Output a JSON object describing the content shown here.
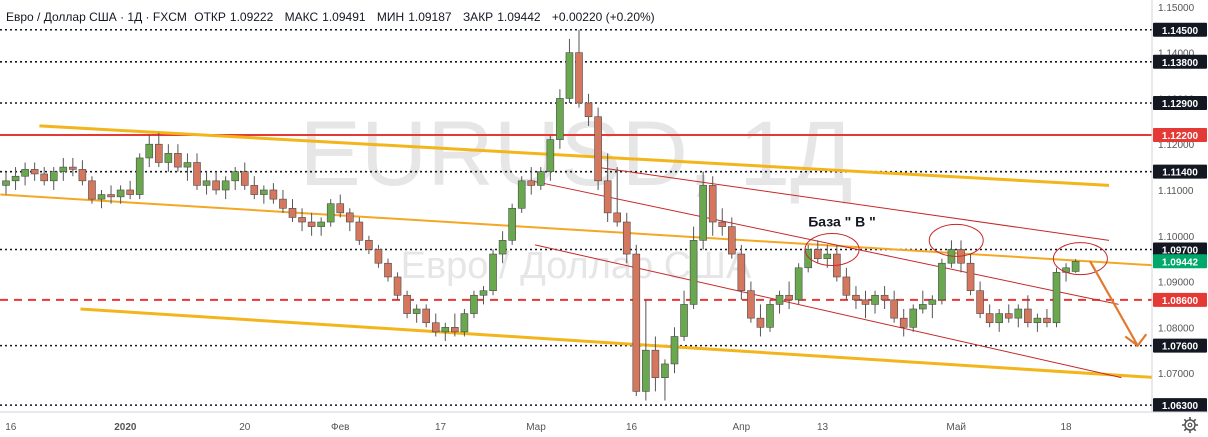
{
  "header": {
    "symbol": "Евро / Доллар США · 1Д · FXCM",
    "open_label": "ОТКР",
    "open": "1.09222",
    "high_label": "МАКС",
    "high": "1.09491",
    "low_label": "МИН",
    "low": "1.09187",
    "close_label": "ЗАКР",
    "close": "1.09442",
    "change": "+0.00220 (+0.20%)"
  },
  "watermark": {
    "ticker": "EURUSD, 1Д",
    "name": "Евро / Доллар США"
  },
  "annotation": "База \" В \"",
  "colors": {
    "up": "#6aa84f",
    "down": "#d5775e",
    "support": "#f2b51c",
    "mid_line": "#f5a623",
    "red_level": "#e53935",
    "channel": "#c62828",
    "forecast": "#e07a2e",
    "price_tag": "#00a86b"
  },
  "chart_data": {
    "type": "candlestick",
    "title": "Евро / Доллар США · 1Д · FXCM",
    "ylim": [
      1.0615,
      1.1515
    ],
    "y_ticks": [
      "1.15000",
      "1.14000",
      "1.13000",
      "1.12000",
      "1.11000",
      "1.10000",
      "1.09000",
      "1.08000",
      "1.07000"
    ],
    "x_ticks": [
      "16",
      "2020",
      "20",
      "Фев",
      "17",
      "Мар",
      "16",
      "Апр",
      "13",
      "Май",
      "18"
    ],
    "levels": [
      {
        "label": "1.14500",
        "value": 1.145,
        "style": "dotted",
        "color": "#131722"
      },
      {
        "label": "1.13800",
        "value": 1.138,
        "style": "dotted",
        "color": "#131722"
      },
      {
        "label": "1.12900",
        "value": 1.129,
        "style": "dotted",
        "color": "#131722"
      },
      {
        "label": "1.12200",
        "value": 1.122,
        "style": "solid",
        "color": "#e53935"
      },
      {
        "label": "1.11400",
        "value": 1.114,
        "style": "dotted",
        "color": "#131722"
      },
      {
        "label": "1.09700",
        "value": 1.097,
        "style": "dotted",
        "color": "#131722"
      },
      {
        "label": "1.08600",
        "value": 1.086,
        "style": "dashed",
        "color": "#e53935"
      },
      {
        "label": "1.07600",
        "value": 1.076,
        "style": "dotted",
        "color": "#131722"
      },
      {
        "label": "1.06300",
        "value": 1.063,
        "style": "dotted",
        "color": "#131722"
      }
    ],
    "current_price": {
      "label": "1.09442",
      "value": 1.09442
    },
    "candles": [
      [
        1.111,
        1.114,
        1.109,
        1.112
      ],
      [
        1.112,
        1.115,
        1.11,
        1.113
      ],
      [
        1.113,
        1.116,
        1.111,
        1.1145
      ],
      [
        1.1145,
        1.116,
        1.112,
        1.1135
      ],
      [
        1.1135,
        1.115,
        1.111,
        1.112
      ],
      [
        1.112,
        1.115,
        1.11,
        1.114
      ],
      [
        1.114,
        1.117,
        1.112,
        1.115
      ],
      [
        1.115,
        1.117,
        1.113,
        1.1145
      ],
      [
        1.1145,
        1.1165,
        1.111,
        1.112
      ],
      [
        1.112,
        1.113,
        1.107,
        1.108
      ],
      [
        1.108,
        1.11,
        1.106,
        1.109
      ],
      [
        1.109,
        1.111,
        1.107,
        1.1085
      ],
      [
        1.1085,
        1.111,
        1.107,
        1.11
      ],
      [
        1.11,
        1.112,
        1.108,
        1.109
      ],
      [
        1.109,
        1.118,
        1.108,
        1.117
      ],
      [
        1.117,
        1.122,
        1.115,
        1.12
      ],
      [
        1.12,
        1.1225,
        1.115,
        1.116
      ],
      [
        1.116,
        1.12,
        1.114,
        1.118
      ],
      [
        1.118,
        1.12,
        1.114,
        1.115
      ],
      [
        1.115,
        1.118,
        1.112,
        1.116
      ],
      [
        1.116,
        1.118,
        1.11,
        1.111
      ],
      [
        1.111,
        1.114,
        1.109,
        1.112
      ],
      [
        1.112,
        1.114,
        1.109,
        1.11
      ],
      [
        1.11,
        1.113,
        1.108,
        1.112
      ],
      [
        1.112,
        1.115,
        1.11,
        1.114
      ],
      [
        1.114,
        1.116,
        1.11,
        1.111
      ],
      [
        1.111,
        1.113,
        1.108,
        1.109
      ],
      [
        1.109,
        1.111,
        1.107,
        1.11
      ],
      [
        1.11,
        1.1115,
        1.107,
        1.108
      ],
      [
        1.108,
        1.11,
        1.105,
        1.106
      ],
      [
        1.106,
        1.108,
        1.103,
        1.104
      ],
      [
        1.104,
        1.106,
        1.101,
        1.103
      ],
      [
        1.103,
        1.105,
        1.1,
        1.102
      ],
      [
        1.102,
        1.104,
        1.1,
        1.103
      ],
      [
        1.103,
        1.108,
        1.102,
        1.107
      ],
      [
        1.107,
        1.109,
        1.104,
        1.105
      ],
      [
        1.105,
        1.106,
        1.101,
        1.103
      ],
      [
        1.103,
        1.104,
        1.098,
        1.099
      ],
      [
        1.099,
        1.1,
        1.096,
        1.097
      ],
      [
        1.097,
        1.098,
        1.093,
        1.094
      ],
      [
        1.094,
        1.095,
        1.09,
        1.091
      ],
      [
        1.091,
        1.092,
        1.086,
        1.087
      ],
      [
        1.087,
        1.088,
        1.082,
        1.083
      ],
      [
        1.083,
        1.085,
        1.081,
        1.084
      ],
      [
        1.084,
        1.085,
        1.08,
        1.081
      ],
      [
        1.081,
        1.083,
        1.078,
        1.079
      ],
      [
        1.079,
        1.081,
        1.077,
        1.08
      ],
      [
        1.08,
        1.083,
        1.078,
        1.079
      ],
      [
        1.079,
        1.084,
        1.078,
        1.083
      ],
      [
        1.083,
        1.088,
        1.082,
        1.087
      ],
      [
        1.087,
        1.089,
        1.085,
        1.088
      ],
      [
        1.088,
        1.097,
        1.087,
        1.096
      ],
      [
        1.096,
        1.101,
        1.094,
        1.099
      ],
      [
        1.099,
        1.107,
        1.098,
        1.106
      ],
      [
        1.106,
        1.113,
        1.105,
        1.112
      ],
      [
        1.112,
        1.115,
        1.109,
        1.111
      ],
      [
        1.111,
        1.115,
        1.11,
        1.114
      ],
      [
        1.114,
        1.122,
        1.112,
        1.121
      ],
      [
        1.121,
        1.132,
        1.119,
        1.13
      ],
      [
        1.13,
        1.143,
        1.129,
        1.14
      ],
      [
        1.14,
        1.145,
        1.128,
        1.129
      ],
      [
        1.129,
        1.131,
        1.124,
        1.126
      ],
      [
        1.126,
        1.128,
        1.11,
        1.112
      ],
      [
        1.112,
        1.118,
        1.103,
        1.105
      ],
      [
        1.105,
        1.115,
        1.102,
        1.103
      ],
      [
        1.103,
        1.105,
        1.094,
        1.096
      ],
      [
        1.096,
        1.098,
        1.065,
        1.066
      ],
      [
        1.066,
        1.086,
        1.064,
        1.075
      ],
      [
        1.075,
        1.078,
        1.066,
        1.069
      ],
      [
        1.069,
        1.073,
        1.064,
        1.072
      ],
      [
        1.072,
        1.08,
        1.07,
        1.078
      ],
      [
        1.078,
        1.088,
        1.077,
        1.085
      ],
      [
        1.085,
        1.102,
        1.084,
        1.099
      ],
      [
        1.099,
        1.114,
        1.097,
        1.111
      ],
      [
        1.111,
        1.113,
        1.1,
        1.103
      ],
      [
        1.103,
        1.106,
        1.1,
        1.102
      ],
      [
        1.102,
        1.104,
        1.095,
        1.096
      ],
      [
        1.096,
        1.098,
        1.086,
        1.088
      ],
      [
        1.088,
        1.09,
        1.081,
        1.082
      ],
      [
        1.082,
        1.085,
        1.078,
        1.08
      ],
      [
        1.08,
        1.086,
        1.079,
        1.085
      ],
      [
        1.085,
        1.088,
        1.083,
        1.087
      ],
      [
        1.087,
        1.09,
        1.084,
        1.086
      ],
      [
        1.086,
        1.094,
        1.085,
        1.093
      ],
      [
        1.093,
        1.098,
        1.092,
        1.097
      ],
      [
        1.097,
        1.099,
        1.094,
        1.095
      ],
      [
        1.095,
        1.098,
        1.093,
        1.096
      ],
      [
        1.096,
        1.098,
        1.09,
        1.091
      ],
      [
        1.091,
        1.093,
        1.086,
        1.087
      ],
      [
        1.087,
        1.089,
        1.084,
        1.086
      ],
      [
        1.086,
        1.088,
        1.082,
        1.085
      ],
      [
        1.085,
        1.088,
        1.083,
        1.087
      ],
      [
        1.087,
        1.089,
        1.084,
        1.086
      ],
      [
        1.086,
        1.088,
        1.081,
        1.082
      ],
      [
        1.082,
        1.084,
        1.078,
        1.08
      ],
      [
        1.08,
        1.085,
        1.079,
        1.084
      ],
      [
        1.084,
        1.088,
        1.083,
        1.085
      ],
      [
        1.085,
        1.087,
        1.082,
        1.086
      ],
      [
        1.086,
        1.095,
        1.085,
        1.094
      ],
      [
        1.094,
        1.099,
        1.093,
        1.097
      ],
      [
        1.097,
        1.099,
        1.092,
        1.094
      ],
      [
        1.094,
        1.096,
        1.087,
        1.088
      ],
      [
        1.088,
        1.09,
        1.082,
        1.083
      ],
      [
        1.083,
        1.085,
        1.08,
        1.081
      ],
      [
        1.081,
        1.084,
        1.079,
        1.083
      ],
      [
        1.083,
        1.085,
        1.081,
        1.082
      ],
      [
        1.082,
        1.085,
        1.08,
        1.084
      ],
      [
        1.084,
        1.087,
        1.08,
        1.081
      ],
      [
        1.081,
        1.083,
        1.079,
        1.082
      ],
      [
        1.082,
        1.084,
        1.08,
        1.081
      ],
      [
        1.081,
        1.093,
        1.08,
        1.092
      ],
      [
        1.092,
        1.094,
        1.09,
        1.093
      ],
      [
        1.0922,
        1.0949,
        1.0919,
        1.0944
      ]
    ]
  }
}
